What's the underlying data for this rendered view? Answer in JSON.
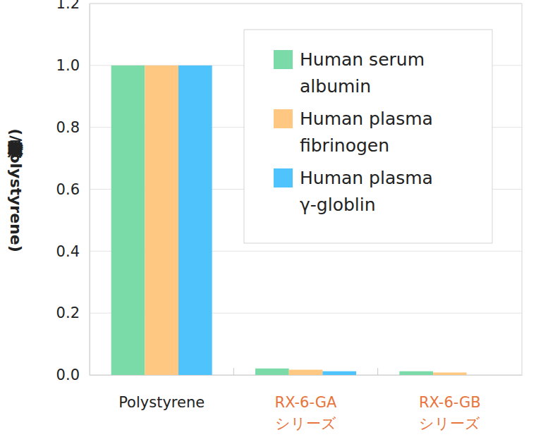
{
  "chart_data": {
    "type": "bar",
    "y_label": "相対吸着量(/Polystyrene)",
    "categories": [
      "Polystyrene",
      "RX-6-GA\nシリーズ",
      "RX-6-GB\nシリーズ"
    ],
    "series": [
      {
        "name": "Human serum\nalbumin",
        "color": "#7adba8",
        "values": [
          1.0,
          0.021,
          0.012
        ]
      },
      {
        "name": "Human plasma\nfibrinogen",
        "color": "#ffc882",
        "values": [
          1.0,
          0.017,
          0.008
        ]
      },
      {
        "name": "Human plasma\nγ-globlin",
        "color": "#4fc3fc",
        "values": [
          1.0,
          0.012,
          0
        ]
      }
    ],
    "ylim": [
      0,
      1.2
    ],
    "yticks": [
      {
        "value": 0,
        "label": "0.0"
      },
      0.2,
      0.4,
      0.6,
      0.8,
      {
        "value": 1,
        "label": "1.0"
      },
      1.2
    ],
    "grid": true,
    "legend": "upper right"
  }
}
